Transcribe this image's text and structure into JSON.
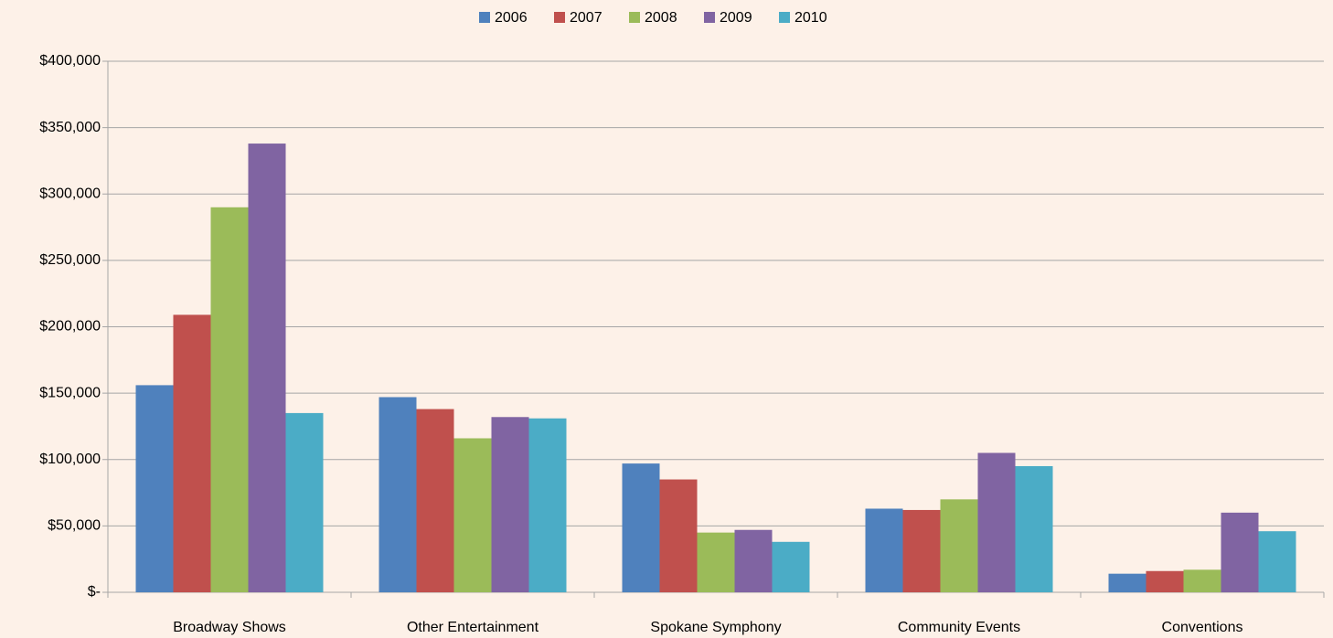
{
  "chart_data": {
    "type": "bar",
    "categories": [
      "Broadway Shows",
      "Other Entertainment",
      "Spokane Symphony",
      "Community Events",
      "Conventions"
    ],
    "series": [
      {
        "name": "2006",
        "color": "#4f81bd",
        "values": [
          156000,
          147000,
          97000,
          63000,
          14000
        ]
      },
      {
        "name": "2007",
        "color": "#c0504d",
        "values": [
          209000,
          138000,
          85000,
          62000,
          16000
        ]
      },
      {
        "name": "2008",
        "color": "#9bbb59",
        "values": [
          290000,
          116000,
          45000,
          70000,
          17000
        ]
      },
      {
        "name": "2009",
        "color": "#8064a2",
        "values": [
          338000,
          132000,
          47000,
          105000,
          60000
        ]
      },
      {
        "name": "2010",
        "color": "#4bacc6",
        "values": [
          135000,
          131000,
          38000,
          95000,
          46000
        ]
      }
    ],
    "ylim": [
      0,
      400000
    ],
    "yticks": [
      {
        "value": 0,
        "label": "$-"
      },
      {
        "value": 50000,
        "label": "$50,000"
      },
      {
        "value": 100000,
        "label": "$100,000"
      },
      {
        "value": 150000,
        "label": "$150,000"
      },
      {
        "value": 200000,
        "label": "$200,000"
      },
      {
        "value": 250000,
        "label": "$250,000"
      },
      {
        "value": 300000,
        "label": "$300,000"
      },
      {
        "value": 350000,
        "label": "$350,000"
      },
      {
        "value": 400000,
        "label": "$400,000"
      }
    ],
    "grid": true,
    "legend": "top"
  }
}
